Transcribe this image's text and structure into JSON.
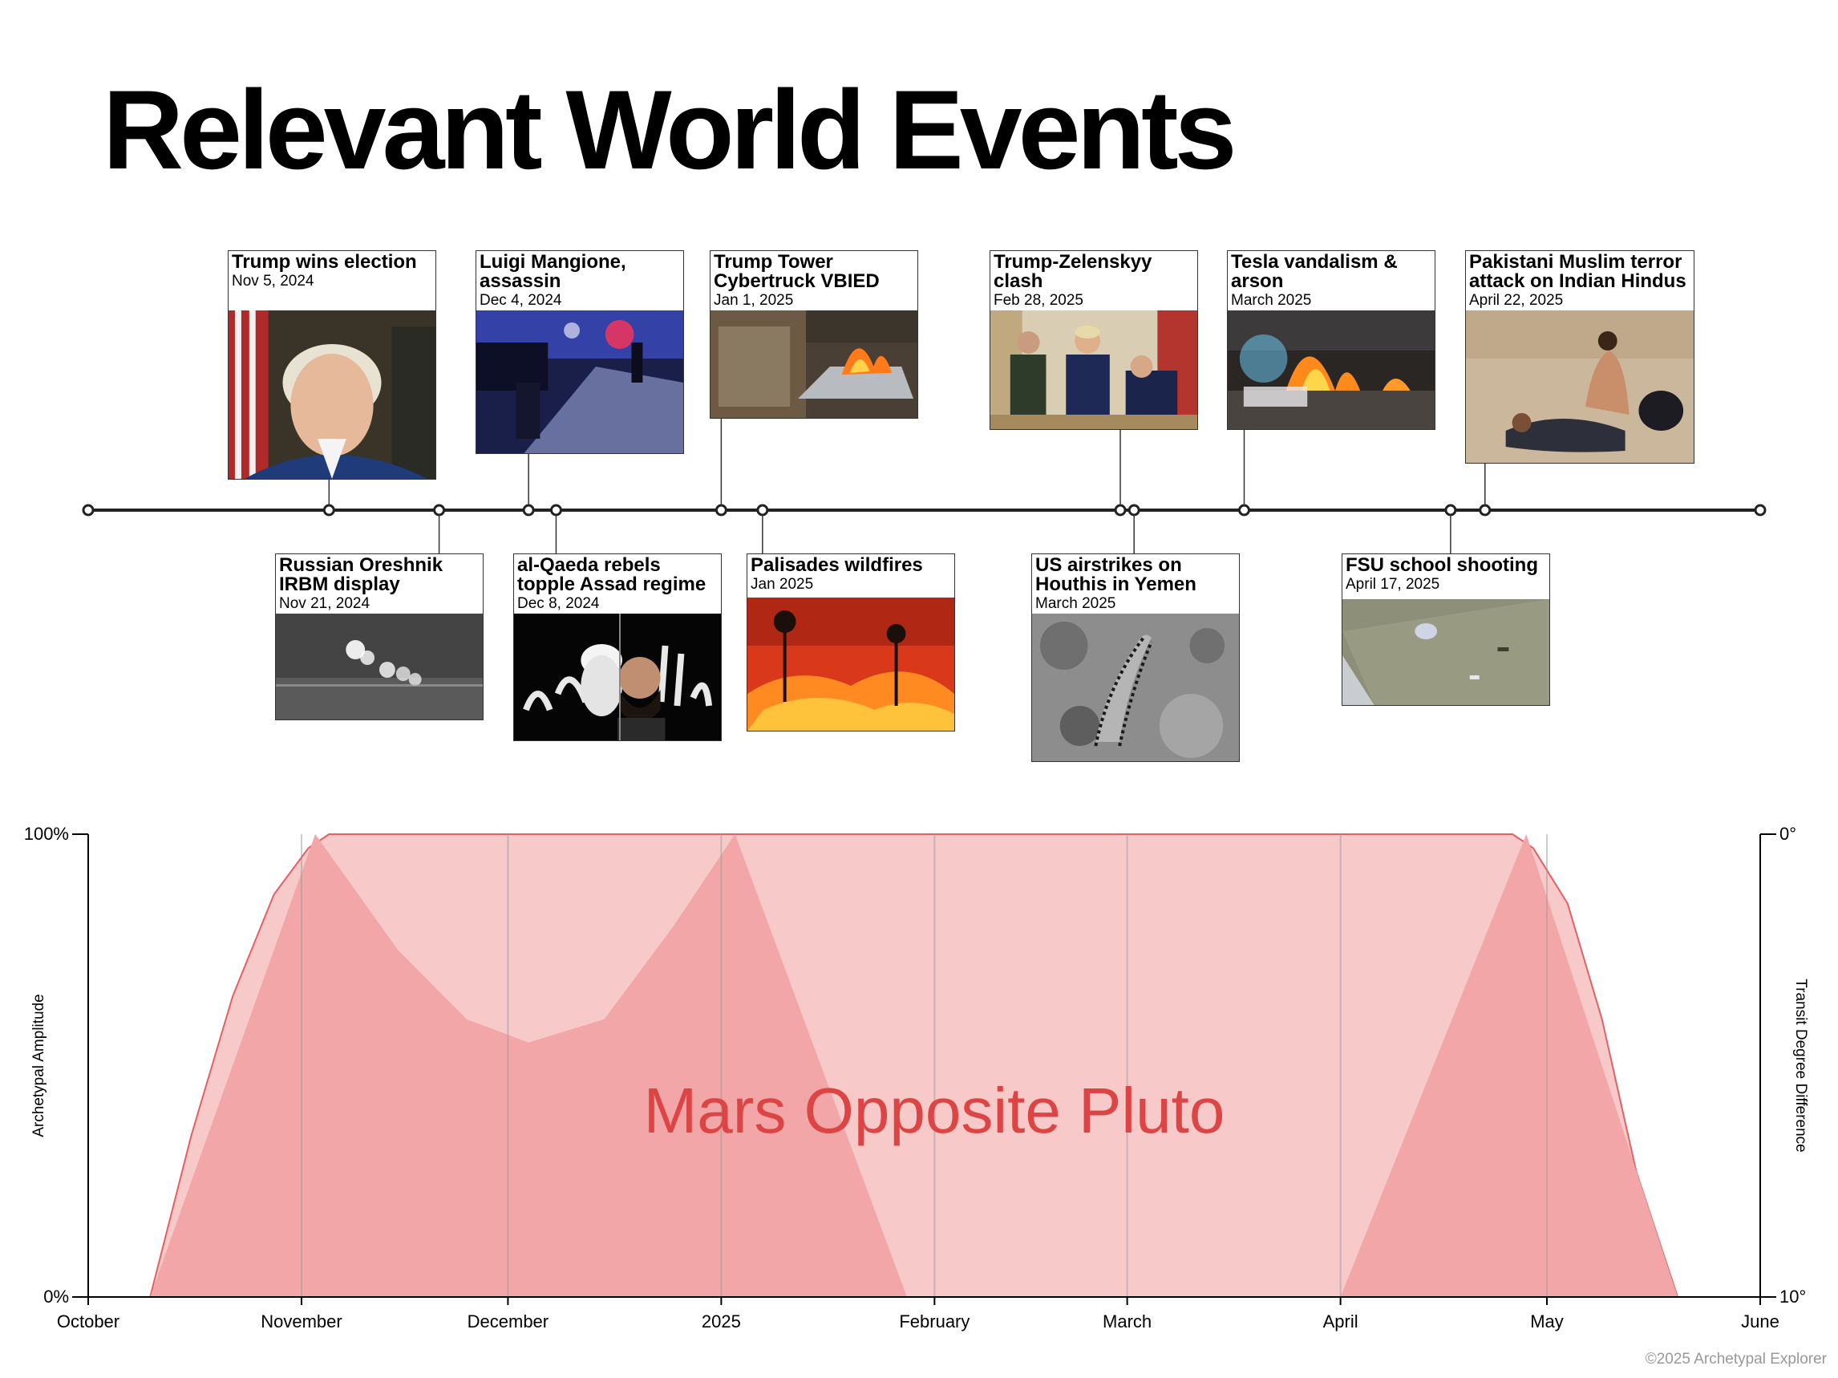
{
  "title": "Relevant World Events",
  "footer": "©2025 Archetypal Explorer",
  "colors": {
    "light_fill": "#f7c9c9",
    "dark_fill": "#f2a6a7",
    "line": "#e46062",
    "label": "#dd4444",
    "grid": "#aaaaaa",
    "axis": "#000000"
  },
  "timeline": {
    "date_range": [
      "2024-10-01",
      "2025-06-01"
    ],
    "markers": [
      "2024-10-01",
      "2024-11-05",
      "2024-11-21",
      "2024-12-04",
      "2024-12-08",
      "2025-01-01",
      "2025-01-07",
      "2025-02-28",
      "2025-03-02",
      "2025-03-18",
      "2025-04-17",
      "2025-04-22",
      "2025-06-01"
    ],
    "events_above": [
      {
        "title": "Trump wins election",
        "date": "Nov 5, 2024",
        "marker_date": "2024-11-05",
        "photo": "portrait-photo"
      },
      {
        "title": "Luigi Mangione,\nassassin",
        "date": "Dec 4, 2024",
        "marker_date": "2024-12-04",
        "photo": "night-street-photo"
      },
      {
        "title": "Trump Tower\nCybertruck VBIED",
        "date": "Jan 1, 2025",
        "marker_date": "2025-01-01",
        "photo": "cybertruck-fire-photo"
      },
      {
        "title": "Trump-Zelenskyy\nclash",
        "date": "Feb 28, 2025",
        "marker_date": "2025-02-28",
        "photo": "oval-office-photo"
      },
      {
        "title": "Tesla vandalism &\narson",
        "date": "March 2025",
        "marker_date": "2025-03-18",
        "photo": "car-fire-photo"
      },
      {
        "title": "Pakistani Muslim terror\nattack on Indian Hindus",
        "date": "April 22, 2025",
        "marker_date": "2025-04-22",
        "photo": "meadow-photo"
      }
    ],
    "events_below": [
      {
        "title": "Russian Oreshnik\nIRBM display",
        "date": "Nov 21, 2024",
        "marker_date": "2024-11-21",
        "photo": "missile-lights-photo"
      },
      {
        "title": "al-Qaeda rebels\ntopple Assad regime",
        "date": "Dec 8, 2024",
        "marker_date": "2024-12-08",
        "photo": "rebel-leader-photo"
      },
      {
        "title": "Palisades wildfires",
        "date": "Jan 2025",
        "marker_date": "2025-01-07",
        "photo": "wildfire-photo"
      },
      {
        "title": "US airstrikes on\nHouthis in Yemen",
        "date": "March 2025",
        "marker_date": "2025-03-02",
        "photo": "aerial-strike-photo"
      },
      {
        "title": "FSU school shooting",
        "date": "April 17, 2025",
        "marker_date": "2025-04-17",
        "photo": "campus-lawn-photo"
      }
    ]
  },
  "chart_data": {
    "type": "area",
    "label": "Mars Opposite Pluto",
    "x_range": [
      "2024-10-01",
      "2025-06-01"
    ],
    "x_ticks": [
      {
        "label": "October",
        "date": "2024-10-01"
      },
      {
        "label": "November",
        "date": "2024-11-01"
      },
      {
        "label": "December",
        "date": "2024-12-01"
      },
      {
        "label": "2025",
        "date": "2025-01-01"
      },
      {
        "label": "February",
        "date": "2025-02-01"
      },
      {
        "label": "March",
        "date": "2025-03-01"
      },
      {
        "label": "April",
        "date": "2025-04-01"
      },
      {
        "label": "May",
        "date": "2025-05-01"
      },
      {
        "label": "June",
        "date": "2025-06-01"
      }
    ],
    "y_left": {
      "label": "Archetypal Amplitude",
      "ticks": [
        "100%",
        "0%"
      ],
      "range": [
        0,
        100
      ]
    },
    "y_right": {
      "label": "Transit Degree Difference",
      "ticks": [
        "0°",
        "10°"
      ],
      "range": [
        0,
        10
      ]
    },
    "grid": true,
    "series": [
      {
        "role": "envelope",
        "points": [
          [
            "2024-10-10",
            0
          ],
          [
            "2024-10-16",
            35
          ],
          [
            "2024-10-22",
            65
          ],
          [
            "2024-10-28",
            87
          ],
          [
            "2024-11-02",
            97
          ],
          [
            "2024-11-05",
            100
          ],
          [
            "2025-04-26",
            100
          ],
          [
            "2025-04-29",
            97
          ],
          [
            "2025-05-04",
            85
          ],
          [
            "2025-05-09",
            60
          ],
          [
            "2025-05-14",
            27
          ],
          [
            "2025-05-20",
            0
          ]
        ]
      },
      {
        "role": "degree_difference",
        "points": [
          [
            "2024-10-10",
            0
          ],
          [
            "2024-11-03",
            100
          ],
          [
            "2024-11-15",
            75
          ],
          [
            "2024-11-25",
            60
          ],
          [
            "2024-12-04",
            55
          ],
          [
            "2024-12-15",
            60
          ],
          [
            "2024-12-25",
            80
          ],
          [
            "2025-01-03",
            100
          ],
          [
            "2025-01-28",
            0
          ],
          [
            "2025-04-01",
            0
          ],
          [
            "2025-04-28",
            100
          ],
          [
            "2025-05-20",
            0
          ]
        ]
      }
    ]
  }
}
